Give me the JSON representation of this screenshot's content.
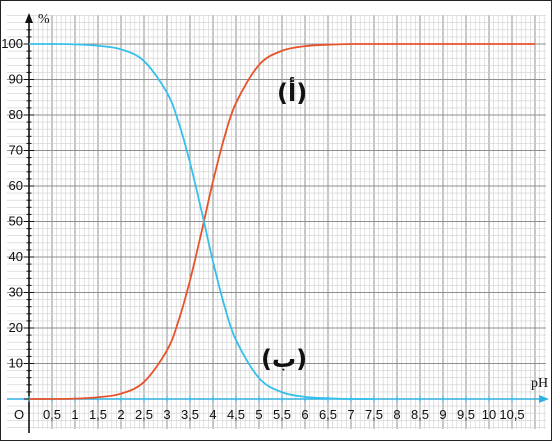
{
  "chart_data": {
    "type": "line",
    "title": "",
    "xlabel": "pH",
    "ylabel": "%",
    "xlim": [
      0,
      11
    ],
    "ylim": [
      0,
      105
    ],
    "grid": true,
    "x_tick_labels": [
      "O",
      "0,5",
      "1",
      "1,5",
      "2",
      "2,5",
      "3",
      "3,5",
      "4",
      "4,5",
      "5",
      "5,5",
      "6",
      "6,5",
      "7",
      "7,5",
      "8",
      "8,5",
      "9",
      "9,5",
      "10",
      "10,5"
    ],
    "y_tick_labels": [
      "10",
      "20",
      "30",
      "40",
      "50",
      "60",
      "70",
      "80",
      "90",
      "100"
    ],
    "series": [
      {
        "name": "(أ)",
        "color": "#e8522a",
        "x": [
          0,
          0.5,
          1,
          1.5,
          2,
          2.5,
          3,
          3.25,
          3.5,
          3.75,
          4,
          4.25,
          4.5,
          5,
          5.5,
          6,
          6.5,
          7,
          8,
          9,
          10,
          11
        ],
        "y": [
          0,
          0,
          0.1,
          0.5,
          1.5,
          4.8,
          13.7,
          22,
          33.4,
          47,
          61.3,
          73.8,
          83.4,
          94.1,
          98.1,
          99.4,
          99.8,
          100,
          100,
          100,
          100,
          100
        ]
      },
      {
        "name": "(ب)",
        "color": "#35c0ec",
        "x": [
          0,
          0.5,
          1,
          1.5,
          2,
          2.5,
          3,
          3.25,
          3.5,
          3.75,
          4,
          4.25,
          4.5,
          5,
          5.5,
          6,
          6.5,
          7,
          7.5
        ],
        "y": [
          100,
          100,
          99.9,
          99.5,
          98.5,
          95.2,
          86.3,
          78,
          66.6,
          53,
          38.7,
          26.2,
          16.6,
          5.9,
          1.9,
          0.6,
          0.2,
          0,
          0
        ]
      }
    ]
  }
}
